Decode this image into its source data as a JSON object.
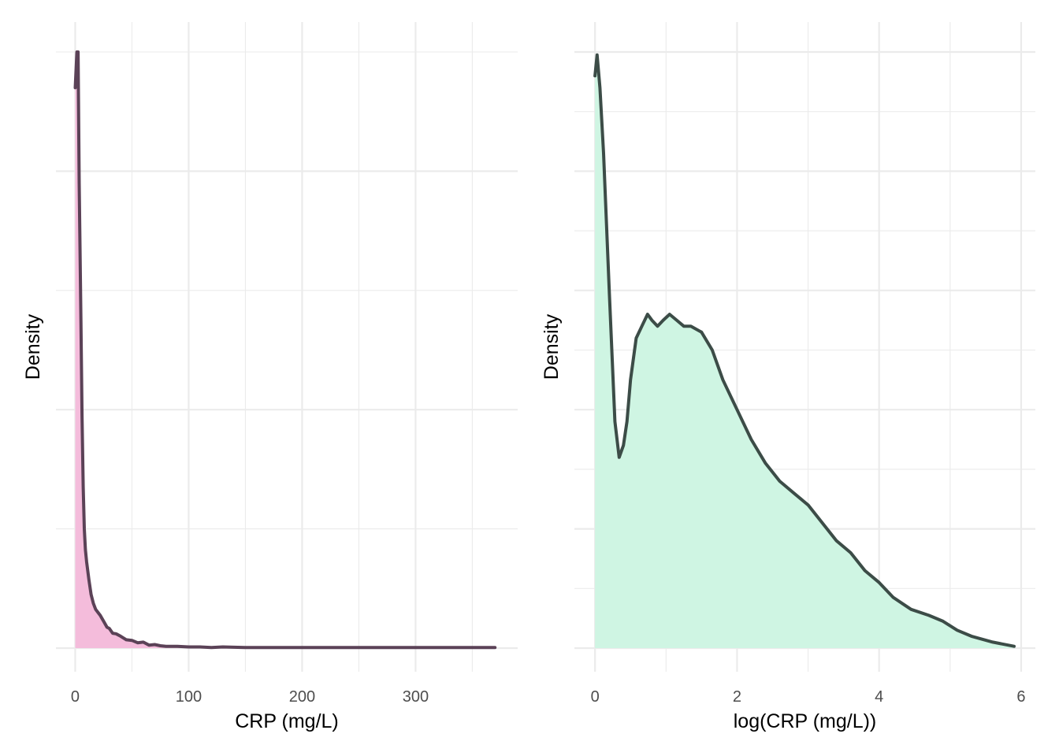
{
  "chart_data": [
    {
      "type": "area",
      "xlabel": "CRP (mg/L)",
      "ylabel": "Density",
      "xlim": [
        -17,
        390
      ],
      "ylim": [
        0,
        1.0
      ],
      "xticks": [
        0,
        100,
        200,
        300
      ],
      "xtick_labels": [
        "0",
        "100",
        "200",
        "300"
      ],
      "y_tick_labels_shown": false,
      "grid": true,
      "fill_color": "#f4bcdb",
      "line_color": "#5b4257",
      "series": [
        {
          "x": [
            0,
            1.5,
            2.5,
            3.5,
            5,
            6,
            7,
            8,
            9,
            10,
            12,
            14,
            16,
            18,
            20,
            22,
            25,
            28,
            30,
            33,
            36,
            40,
            45,
            50,
            55,
            60,
            65,
            70,
            75,
            80,
            90,
            100,
            110,
            120,
            130,
            150,
            170,
            200,
            250,
            300,
            340,
            370
          ],
          "y": [
            0.94,
            1.0,
            1.0,
            0.78,
            0.55,
            0.39,
            0.27,
            0.2,
            0.165,
            0.145,
            0.115,
            0.09,
            0.075,
            0.065,
            0.06,
            0.055,
            0.045,
            0.035,
            0.033,
            0.025,
            0.024,
            0.02,
            0.014,
            0.013,
            0.009,
            0.01,
            0.005,
            0.006,
            0.004,
            0.003,
            0.003,
            0.002,
            0.002,
            0.001,
            0.002,
            0.001,
            0.001,
            0.001,
            0.001,
            0.001,
            0.001,
            0.001
          ]
        }
      ]
    },
    {
      "type": "area",
      "xlabel": "log(CRP (mg/L))",
      "ylabel": "Density",
      "xlim": [
        -0.29,
        6.2
      ],
      "ylim": [
        0,
        1.0
      ],
      "xticks": [
        0,
        2,
        4,
        6
      ],
      "xtick_labels": [
        "0",
        "2",
        "4",
        "6"
      ],
      "y_tick_labels_shown": false,
      "grid": true,
      "fill_color": "#cff5e3",
      "line_color": "#3c4c47",
      "series": [
        {
          "x": [
            0,
            0.03,
            0.07,
            0.12,
            0.2,
            0.28,
            0.34,
            0.4,
            0.45,
            0.5,
            0.58,
            0.66,
            0.74,
            0.8,
            0.88,
            0.96,
            1.05,
            1.15,
            1.25,
            1.35,
            1.5,
            1.65,
            1.8,
            2.0,
            2.2,
            2.4,
            2.6,
            2.8,
            3.0,
            3.2,
            3.4,
            3.6,
            3.8,
            4.0,
            4.2,
            4.45,
            4.7,
            4.9,
            5.1,
            5.3,
            5.6,
            5.9
          ],
          "y": [
            0.96,
            0.995,
            0.94,
            0.83,
            0.6,
            0.38,
            0.32,
            0.34,
            0.38,
            0.45,
            0.52,
            0.54,
            0.56,
            0.55,
            0.54,
            0.55,
            0.56,
            0.55,
            0.54,
            0.54,
            0.53,
            0.5,
            0.45,
            0.4,
            0.35,
            0.31,
            0.28,
            0.26,
            0.24,
            0.21,
            0.18,
            0.16,
            0.13,
            0.11,
            0.085,
            0.065,
            0.055,
            0.045,
            0.03,
            0.02,
            0.01,
            0.003
          ]
        }
      ]
    }
  ]
}
